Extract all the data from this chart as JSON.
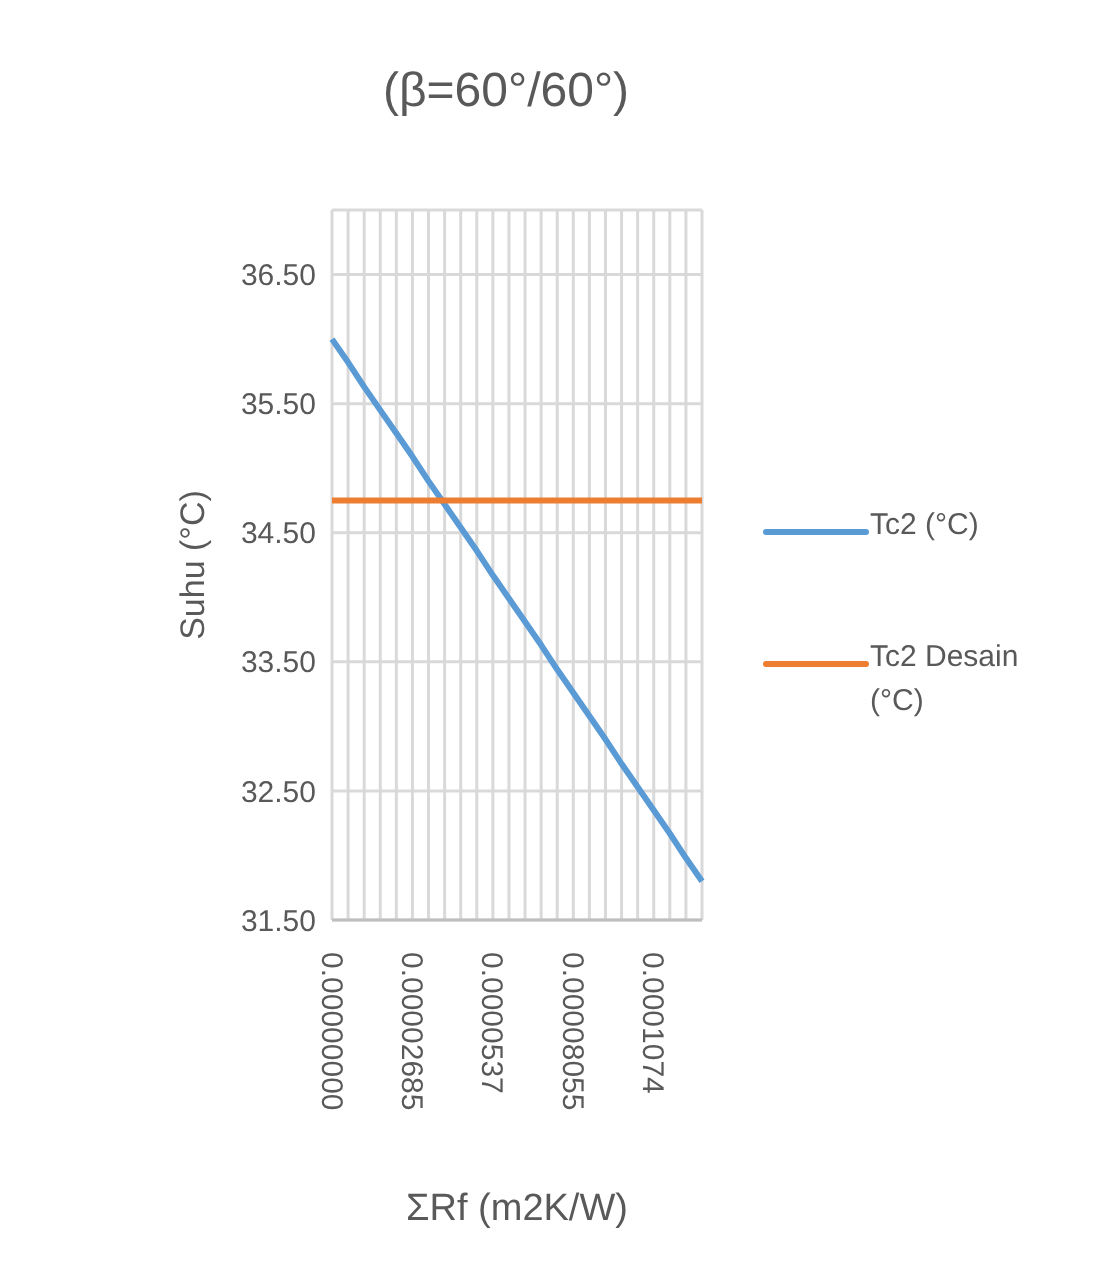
{
  "chart_data": {
    "type": "line",
    "title": "(β=60°/60°)",
    "xlabel": "ΣRf (m2K/W)",
    "ylabel": "Suhu (°C)",
    "categories": [
      "0.00000000",
      null,
      null,
      null,
      null,
      "0.00002685",
      null,
      null,
      null,
      null,
      "0.0000537",
      null,
      null,
      null,
      null,
      "0.00008055",
      null,
      null,
      null,
      null,
      "0.0001074",
      null,
      null,
      null
    ],
    "series": [
      {
        "name": "Tc2 (°C)",
        "color": "#5b9bd5",
        "values": [
          36.0,
          35.82,
          35.63,
          35.45,
          35.27,
          35.09,
          34.9,
          34.72,
          34.54,
          34.36,
          34.17,
          33.99,
          33.81,
          33.63,
          33.44,
          33.26,
          33.08,
          32.9,
          32.71,
          32.53,
          32.35,
          32.17,
          31.98,
          31.8
        ]
      },
      {
        "name": "Tc2 Desain (°C)",
        "color": "#ed7d31",
        "values": [
          34.75,
          34.75,
          34.75,
          34.75,
          34.75,
          34.75,
          34.75,
          34.75,
          34.75,
          34.75,
          34.75,
          34.75,
          34.75,
          34.75,
          34.75,
          34.75,
          34.75,
          34.75,
          34.75,
          34.75,
          34.75,
          34.75,
          34.75,
          34.75
        ]
      }
    ],
    "ylim": [
      31.5,
      37
    ],
    "yticks": [
      {
        "value": 31.5,
        "label": "31.50"
      },
      {
        "value": 32.5,
        "label": "32.50"
      },
      {
        "value": 33.5,
        "label": "33.50"
      },
      {
        "value": 34.5,
        "label": "34.50"
      },
      {
        "value": 35.5,
        "label": "35.50"
      },
      {
        "value": 36.5,
        "label": "36.50"
      }
    ],
    "grid": true,
    "legend": "right",
    "marker": "none",
    "line_style": "solid"
  }
}
